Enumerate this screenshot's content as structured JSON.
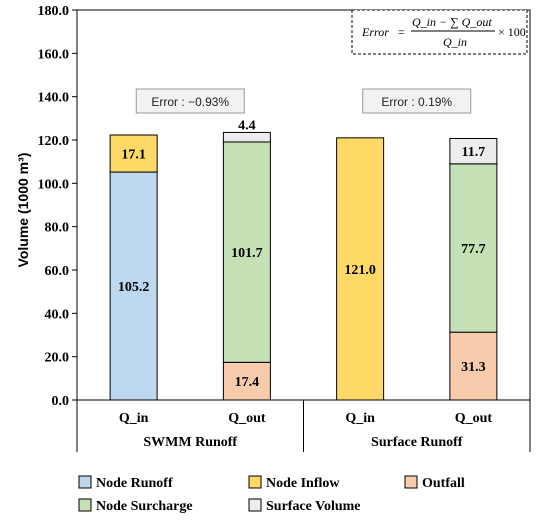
{
  "chart_data": {
    "type": "bar",
    "stacked": true,
    "ylabel": "Volume (1000 m³)",
    "ylim": [
      0,
      180
    ],
    "ytick_step": 20,
    "ytick_labels": [
      "0.0",
      "20.0",
      "40.0",
      "60.0",
      "80.0",
      "100.0",
      "120.0",
      "140.0",
      "160.0",
      "180.0"
    ],
    "grid": false,
    "categories": [
      "Q_in",
      "Q_out",
      "Q_in",
      "Q_out"
    ],
    "groups": [
      {
        "label": "SWMM Runoff",
        "members": [
          0,
          1
        ],
        "error_label": "Error : −0.93%"
      },
      {
        "label": "Surface Runoff",
        "members": [
          2,
          3
        ],
        "error_label": "Error : 0.19%"
      }
    ],
    "series": [
      {
        "name": "Node Runoff",
        "color": "#bdd7ee",
        "values": [
          105.2,
          0,
          0,
          0
        ],
        "labels": [
          "105.2",
          "",
          "",
          ""
        ]
      },
      {
        "name": "Node Inflow",
        "color": "#ffd966",
        "values": [
          17.1,
          0,
          121.0,
          0
        ],
        "labels": [
          "17.1",
          "",
          "121.0",
          ""
        ]
      },
      {
        "name": "Outfall",
        "color": "#f8cbad",
        "values": [
          0,
          17.4,
          0,
          31.3
        ],
        "labels": [
          "",
          "17.4",
          "",
          "31.3"
        ]
      },
      {
        "name": "Node Surcharge",
        "color": "#c5e0b4",
        "values": [
          0,
          101.7,
          0,
          77.7
        ],
        "labels": [
          "",
          "101.7",
          "",
          "77.7"
        ]
      },
      {
        "name": "Surface Volume",
        "color": "#ededed",
        "values": [
          0,
          4.4,
          0,
          11.7
        ],
        "labels": [
          "",
          "4.4",
          "",
          "11.7"
        ]
      }
    ],
    "legend": {
      "placement": "bottom",
      "order": [
        "Node Runoff",
        "Node Inflow",
        "Outfall",
        "Node Surcharge",
        "Surface Volume"
      ]
    },
    "annotation": {
      "placement": "top-right",
      "lhs": "Error",
      "numerator": "Q_in − ∑ Q_out",
      "denominator": "Q_in",
      "multiplier": "× 100"
    }
  }
}
